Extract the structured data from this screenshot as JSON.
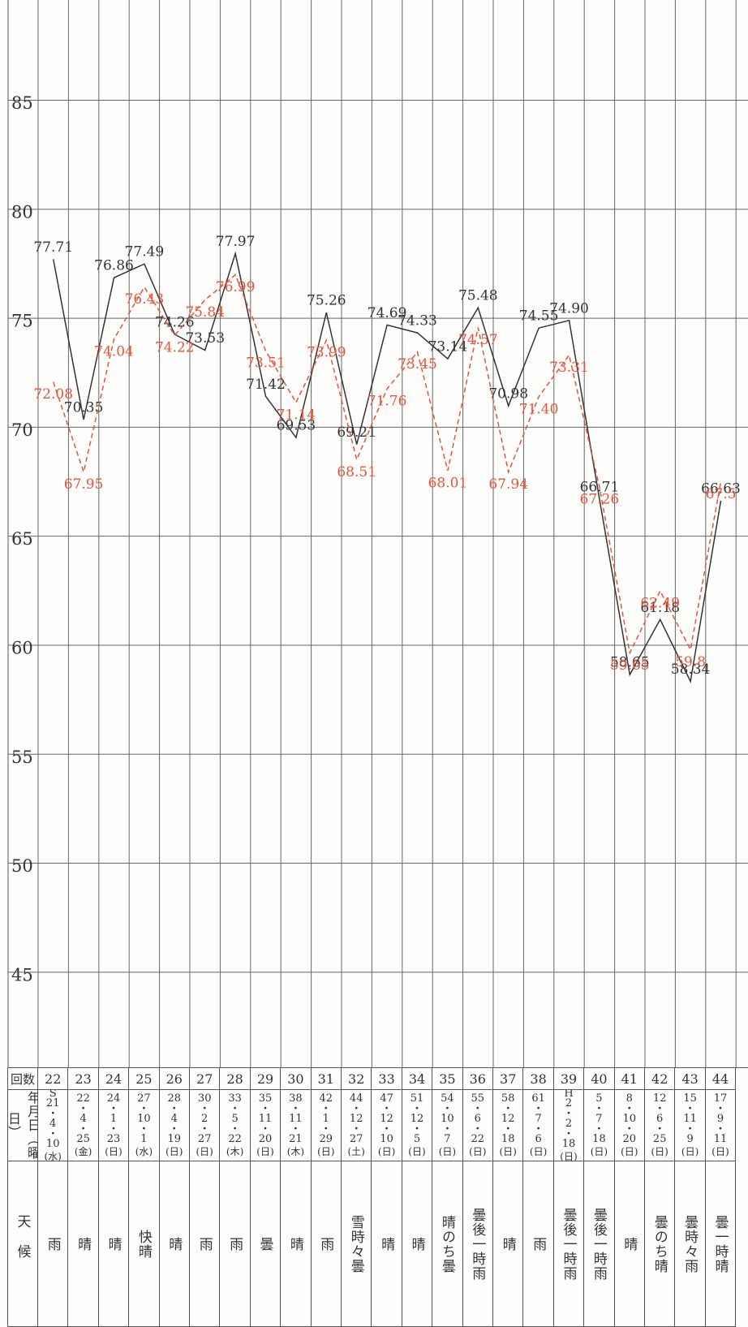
{
  "chart_data": {
    "type": "line",
    "categories": [
      22,
      23,
      24,
      25,
      26,
      27,
      28,
      29,
      30,
      31,
      32,
      33,
      34,
      35,
      36,
      37,
      38,
      39,
      40,
      41,
      42,
      43,
      44
    ],
    "series": [
      {
        "color": "#333333",
        "dashed": false,
        "values": [
          77.71,
          70.35,
          76.86,
          77.49,
          74.26,
          73.53,
          77.97,
          71.42,
          69.53,
          75.26,
          69.21,
          74.69,
          74.33,
          73.14,
          75.48,
          70.98,
          74.55,
          74.9,
          66.71,
          58.65,
          61.18,
          58.34,
          66.63
        ],
        "value_labels": [
          "77.71",
          "70.35",
          "76.86",
          "77.49",
          "74.26",
          "73.53",
          "77.97",
          "71.42",
          "69.53",
          "75.26",
          "69.21",
          "74.69",
          "74.33",
          "73.14",
          "75.48",
          "70.98",
          "74.55",
          "74.90",
          "66.71",
          "58.65",
          "61.18",
          "58.34",
          "66.63"
        ]
      },
      {
        "color": "#e8533a",
        "dashed": true,
        "values": [
          72.08,
          67.95,
          74.04,
          76.43,
          74.22,
          75.84,
          76.99,
          73.51,
          71.14,
          73.99,
          68.51,
          71.76,
          73.45,
          68.01,
          74.57,
          67.94,
          71.4,
          73.31,
          67.26,
          59.65,
          62.49,
          59.8,
          67.5
        ],
        "value_labels": [
          "72.08",
          "67.95",
          "74.04",
          "76.43",
          "74.22",
          "75.84",
          "76.99",
          "73.51",
          "71.14",
          "73.99",
          "68.51",
          "71.76",
          "73.45",
          "68.01",
          "74.57",
          "67.94",
          "71.40",
          "73.31",
          "67.26",
          "59.65",
          "62.49",
          "59.8",
          "67.5"
        ]
      }
    ],
    "ylim": [
      40.6,
      89.6
    ],
    "yticks": [
      45,
      50,
      55,
      60,
      65,
      70,
      75,
      80,
      85
    ],
    "grid": true
  },
  "table": {
    "headers": {
      "count": "回数",
      "date": "年月日（曜日）",
      "weather": "天候"
    },
    "dates": [
      "S\n21\n・\n4\n・\n10",
      "22\n・\n4\n・\n25",
      "24\n・\n1\n・\n23",
      "27\n・\n10\n・\n1",
      "28\n・\n4\n・\n19",
      "30\n・\n2\n・\n27",
      "33\n・\n5\n・\n22",
      "35\n・\n11\n・\n20",
      "38\n・\n11\n・\n21",
      "42\n・\n1\n・\n29",
      "44\n・\n12\n・\n27",
      "47\n・\n12\n・\n10",
      "51\n・\n12\n・\n5",
      "54\n・\n10\n・\n7",
      "55\n・\n6\n・\n22",
      "58\n・\n12\n・\n18",
      "61\n・\n7\n・\n6",
      "H\n2\n・\n2\n・\n18",
      "5\n・\n7\n・\n18",
      "8\n・\n10\n・\n20",
      "12\n・\n6\n・\n25",
      "15\n・\n11\n・\n9",
      "17\n・\n9\n・\n11"
    ],
    "weekdays": [
      "(水)",
      "(金)",
      "(日)",
      "(水)",
      "(日)",
      "(日)",
      "(木)",
      "(日)",
      "(木)",
      "(日)",
      "(土)",
      "(日)",
      "(日)",
      "(日)",
      "(日)",
      "(日)",
      "(日)",
      "(日)",
      "(日)",
      "(日)",
      "(日)",
      "(日)",
      "(日)"
    ],
    "weather": [
      "雨",
      "晴",
      "晴",
      "快晴",
      "晴",
      "雨",
      "雨",
      "曇",
      "晴",
      "雨",
      "雪時々曇",
      "晴",
      "晴",
      "晴のち曇",
      "曇後一時雨",
      "晴",
      "雨",
      "曇後一時雨",
      "曇後一時雨",
      "晴",
      "曇のち晴",
      "曇時々雨",
      "曇一時晴"
    ]
  }
}
